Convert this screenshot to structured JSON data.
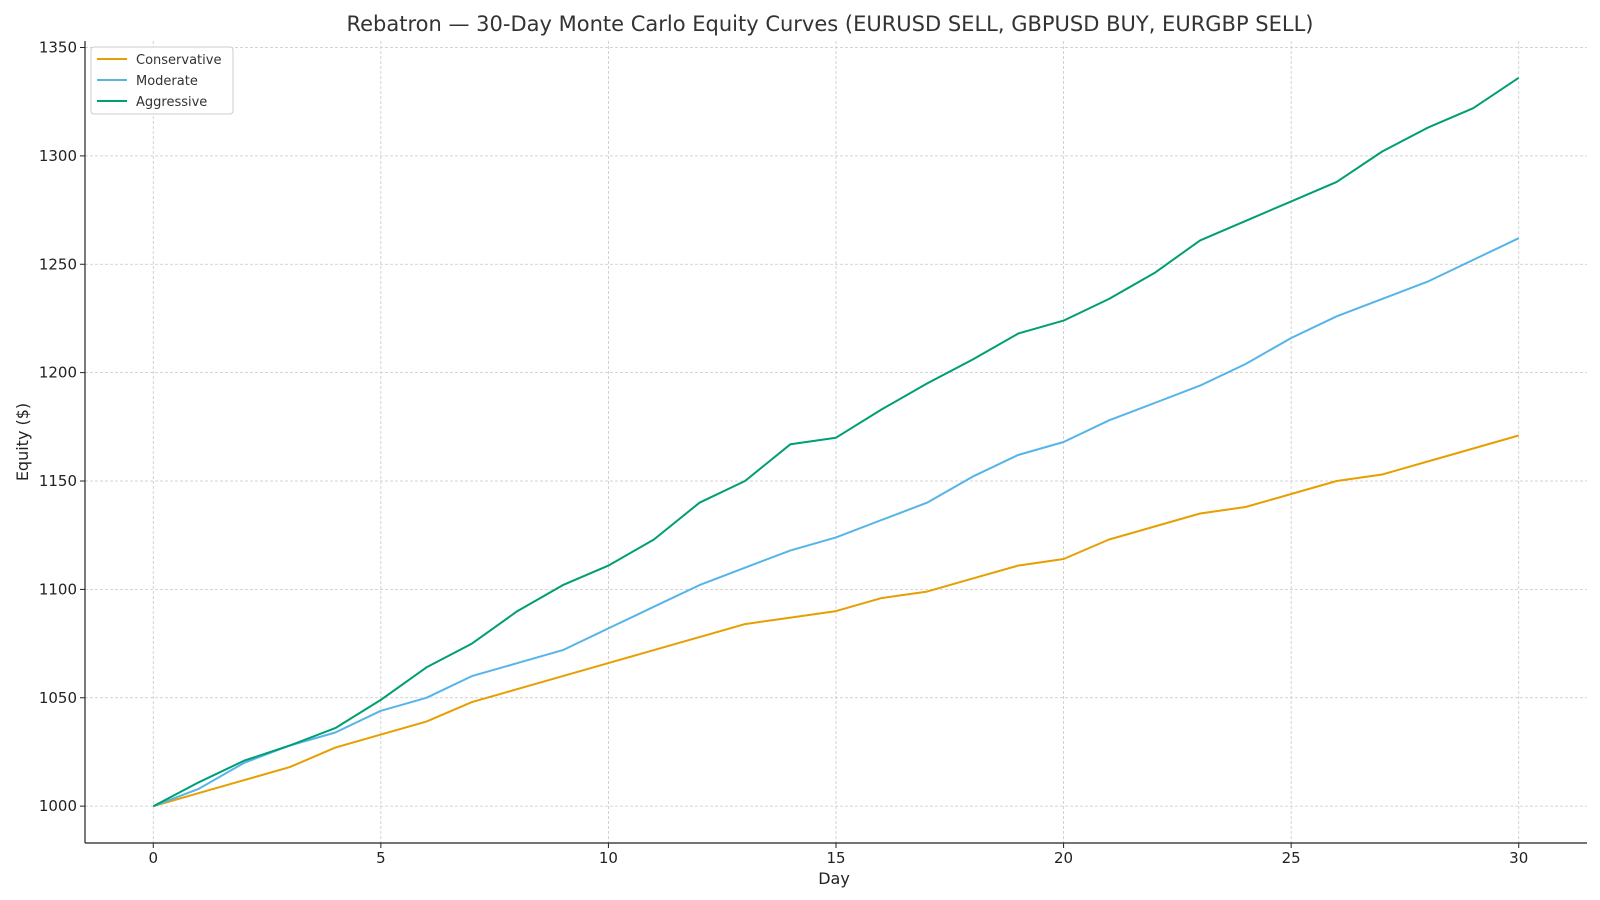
{
  "chart_data": {
    "type": "line",
    "title": "Rebatron — 30-Day Monte Carlo Equity Curves (EURUSD SELL, GBPUSD BUY, EURGBP SELL)",
    "xlabel": "Day",
    "ylabel": "Equity ($)",
    "xlim": [
      -1.5,
      31.5
    ],
    "ylim": [
      983,
      1353
    ],
    "xticks": [
      "0",
      "5",
      "10",
      "15",
      "20",
      "25",
      "30"
    ],
    "yticks": [
      "1000",
      "1050",
      "1100",
      "1150",
      "1200",
      "1250",
      "1300",
      "1350"
    ],
    "grid": true,
    "legend_position": "top-left",
    "x": [
      0,
      1,
      2,
      3,
      4,
      5,
      6,
      7,
      8,
      9,
      10,
      11,
      12,
      13,
      14,
      15,
      16,
      17,
      18,
      19,
      20,
      21,
      22,
      23,
      24,
      25,
      26,
      27,
      28,
      29,
      30
    ],
    "series": [
      {
        "name": "Conservative",
        "color": "#E69F00",
        "values": [
          1000,
          1006,
          1012,
          1018,
          1027,
          1033,
          1039,
          1048,
          1054,
          1060,
          1066,
          1072,
          1078,
          1084,
          1087,
          1090,
          1096,
          1099,
          1105,
          1111,
          1114,
          1123,
          1129,
          1135,
          1138,
          1144,
          1150,
          1153,
          1159,
          1165,
          1171
        ]
      },
      {
        "name": "Moderate",
        "color": "#56B4E9",
        "values": [
          1000,
          1008,
          1020,
          1028,
          1034,
          1044,
          1050,
          1060,
          1066,
          1072,
          1082,
          1092,
          1102,
          1110,
          1118,
          1124,
          1132,
          1140,
          1152,
          1162,
          1168,
          1178,
          1186,
          1194,
          1204,
          1216,
          1226,
          1234,
          1242,
          1252,
          1262
        ]
      },
      {
        "name": "Aggressive",
        "color": "#009E73",
        "values": [
          1000,
          1011,
          1021,
          1028,
          1036,
          1049,
          1064,
          1075,
          1090,
          1102,
          1111,
          1123,
          1140,
          1150,
          1167,
          1170,
          1183,
          1195,
          1206,
          1218,
          1224,
          1234,
          1246,
          1261,
          1270,
          1279,
          1288,
          1302,
          1313,
          1322,
          1336
        ]
      }
    ]
  }
}
